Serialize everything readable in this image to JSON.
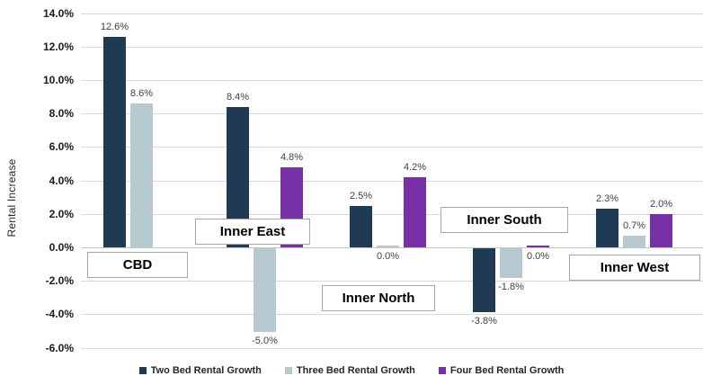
{
  "chart_data": {
    "type": "bar",
    "title": "",
    "xlabel": "",
    "ylabel": "Rental Increase",
    "grid": true,
    "legend_position": "bottom",
    "y_axis": {
      "min": -6.0,
      "max": 14.0,
      "step": 2.0,
      "tick_labels": [
        "14.0%",
        "12.0%",
        "10.0%",
        "8.0%",
        "6.0%",
        "4.0%",
        "2.0%",
        "0.0%",
        "-2.0%",
        "-4.0%",
        "-6.0%"
      ]
    },
    "categories": [
      "CBD",
      "Inner East",
      "Inner North",
      "Inner South",
      "Inner West"
    ],
    "series": [
      {
        "name": "Two Bed Rental Growth",
        "color": "#1f3a52",
        "values": [
          12.6,
          8.4,
          2.5,
          -3.8,
          2.3
        ],
        "labels": [
          "12.6%",
          "8.4%",
          "2.5%",
          "-3.8%",
          "2.3%"
        ]
      },
      {
        "name": "Three Bed Rental Growth",
        "color": "#b6c9d1",
        "values": [
          8.6,
          -5.0,
          0.0,
          -1.8,
          0.7
        ],
        "labels": [
          "8.6%",
          "-5.0%",
          "0.0%",
          "-1.8%",
          "0.7%"
        ]
      },
      {
        "name": "Four Bed Rental Growth",
        "color": "#7830a6",
        "values": [
          null,
          4.8,
          4.2,
          0.0,
          2.0
        ],
        "labels": [
          "",
          "4.8%",
          "4.2%",
          "0.0%",
          "2.0%"
        ]
      }
    ]
  },
  "colors": {
    "gridline": "#d9d9d9",
    "value_label": "#404040",
    "tick_label": "#1a1a1a",
    "category_box_border": "#a6a6a6"
  }
}
